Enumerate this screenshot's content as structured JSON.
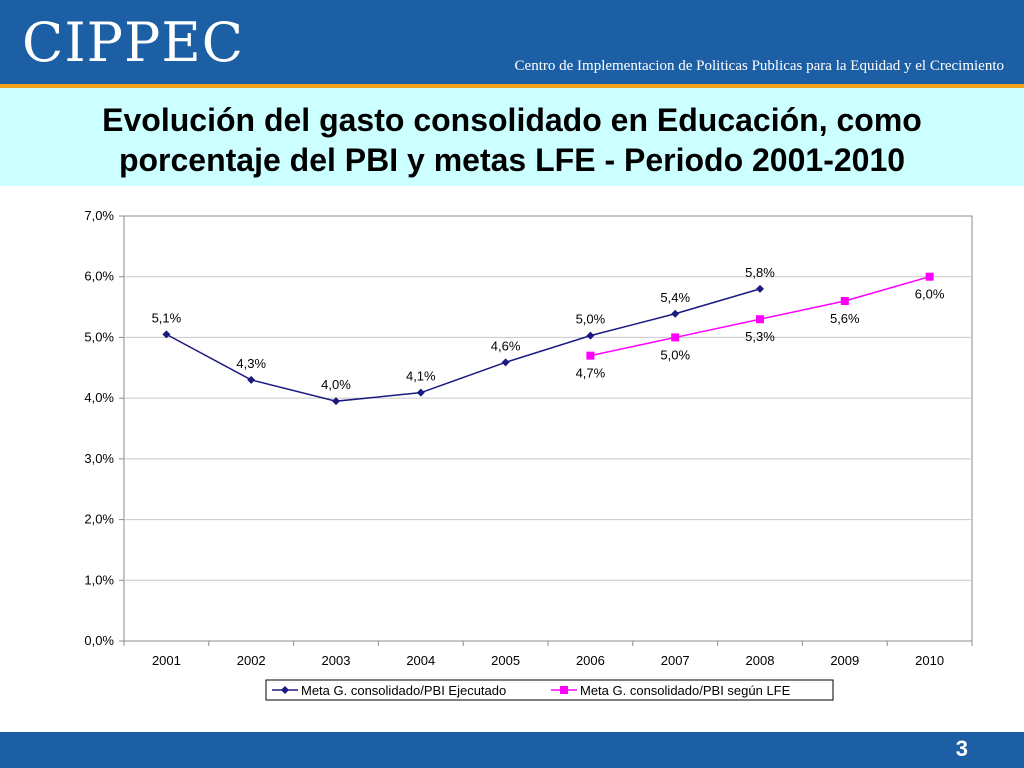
{
  "header": {
    "logo": "CIPPEC",
    "tagline": "Centro de Implementacion de Politicas Publicas para la Equidad y el Crecimiento"
  },
  "slide": {
    "title_line1": "Evolución del gasto consolidado en Educación, como",
    "title_line2": "porcentaje del PBI y metas LFE - Periodo 2001-2010",
    "page_number": "3"
  },
  "colors": {
    "header_bg": "#1c5fa5",
    "accent_line": "#f5a21b",
    "title_band": "#ccffff",
    "series_ejecutado": "#1a1a80",
    "series_lfe": "#ff00ff"
  },
  "chart_data": {
    "type": "line",
    "categories": [
      "2001",
      "2002",
      "2003",
      "2004",
      "2005",
      "2006",
      "2007",
      "2008",
      "2009",
      "2010"
    ],
    "ylim": [
      0,
      7
    ],
    "yticks": [
      0,
      1,
      2,
      3,
      4,
      5,
      6,
      7
    ],
    "ytick_labels": [
      "0,0%",
      "1,0%",
      "2,0%",
      "3,0%",
      "4,0%",
      "5,0%",
      "6,0%",
      "7,0%"
    ],
    "grid": "horizontal",
    "legend_position": "bottom",
    "series": [
      {
        "name": "Meta G. consolidado/PBI Ejecutado",
        "marker": "diamond",
        "color": "#1a1a80",
        "values": [
          5.05,
          4.3,
          3.95,
          4.09,
          4.59,
          5.03,
          5.39,
          5.8,
          null,
          null
        ],
        "labels": [
          "5,1%",
          "4,3%",
          "4,0%",
          "4,1%",
          "4,6%",
          "5,0%",
          "5,4%",
          "5,8%",
          null,
          null
        ],
        "label_position": "above"
      },
      {
        "name": "Meta G. consolidado/PBI según LFE",
        "marker": "square",
        "color": "#ff00ff",
        "values": [
          null,
          null,
          null,
          null,
          null,
          4.7,
          5.0,
          5.3,
          5.6,
          6.0
        ],
        "labels": [
          null,
          null,
          null,
          null,
          null,
          "4,7%",
          "5,0%",
          "5,3%",
          "5,6%",
          "6,0%"
        ],
        "label_position": "below"
      }
    ]
  }
}
